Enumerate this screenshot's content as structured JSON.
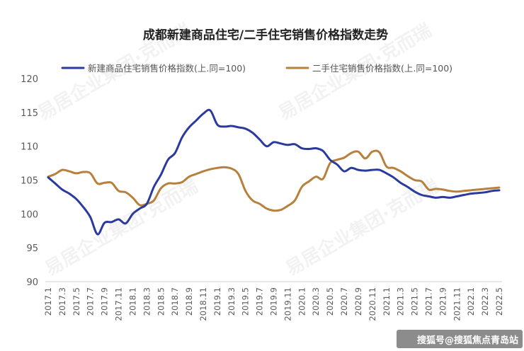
{
  "colors": {
    "new_home": "#2b3a9e",
    "second_hand": "#b7803c",
    "axis_text": "#595959"
  },
  "watermark": "易居企业集团·克而瑞",
  "credit": "搜狐号@搜狐焦点青岛站",
  "chart_data": {
    "type": "line",
    "title": "成都新建商品住宅/二手住宅销售价格指数走势",
    "xlabel": "",
    "ylabel": "",
    "ylim": [
      90,
      120
    ],
    "yticks": [
      90,
      95,
      100,
      105,
      110,
      115,
      120
    ],
    "grid": false,
    "legend_position": "top",
    "x": [
      "2017.1",
      "2017.2",
      "2017.3",
      "2017.4",
      "2017.5",
      "2017.6",
      "2017.7",
      "2017.8",
      "2017.9",
      "2017.10",
      "2017.11",
      "2017.12",
      "2018.1",
      "2018.2",
      "2018.3",
      "2018.4",
      "2018.5",
      "2018.6",
      "2018.7",
      "2018.8",
      "2018.9",
      "2018.10",
      "2018.11",
      "2018.12",
      "2019.1",
      "2019.2",
      "2019.3",
      "2019.4",
      "2019.5",
      "2019.6",
      "2019.7",
      "2019.8",
      "2019.9",
      "2019.10",
      "2019.11",
      "2019.12",
      "2020.1",
      "2020.2",
      "2020.3",
      "2020.4",
      "2020.5",
      "2020.6",
      "2020.7",
      "2020.8",
      "2020.9",
      "2020.10",
      "2020.11",
      "2020.12",
      "2021.1",
      "2021.2",
      "2021.3",
      "2021.4",
      "2021.5",
      "2021.6",
      "2021.7",
      "2021.8",
      "2021.9",
      "2021.10",
      "2021.11",
      "2021.12",
      "2022.1",
      "2022.2",
      "2022.3",
      "2022.4",
      "2022.5"
    ],
    "xtick_labels": [
      "2017.1",
      "2017.3",
      "2017.5",
      "2017.7",
      "2017.9",
      "2017.11",
      "2018.1",
      "2018.3",
      "2018.5",
      "2018.7",
      "2018.9",
      "2018.11",
      "2019.1",
      "2019.3",
      "2019.5",
      "2019.7",
      "2019.9",
      "2019.11",
      "2020.1",
      "2020.3",
      "2020.5",
      "2020.7",
      "2020.9",
      "2020.11",
      "2021.1",
      "2021.3",
      "2021.5",
      "2021.7",
      "2021.9",
      "2021.11",
      "2022.1",
      "2022.3",
      "2022.5"
    ],
    "series": [
      {
        "name": "新建商品住宅销售价格指数(上.同=100)",
        "values": [
          105.4,
          104.5,
          103.6,
          103.0,
          102.2,
          101.0,
          99.5,
          97.0,
          98.7,
          98.8,
          99.2,
          98.6,
          100.0,
          100.8,
          101.5,
          104.0,
          105.8,
          108.0,
          109.0,
          111.3,
          112.8,
          113.8,
          114.8,
          115.3,
          113.2,
          112.9,
          113.0,
          112.8,
          112.6,
          112.0,
          111.0,
          110.0,
          110.6,
          110.4,
          110.2,
          110.3,
          109.7,
          109.6,
          109.7,
          109.3,
          108.0,
          107.3,
          106.3,
          106.8,
          106.5,
          106.4,
          106.5,
          106.5,
          106.0,
          105.4,
          104.6,
          104.0,
          103.3,
          102.8,
          102.6,
          102.4,
          102.5,
          102.4,
          102.6,
          102.8,
          103.0,
          103.1,
          103.2,
          103.4,
          103.5
        ]
      },
      {
        "name": "二手住宅销售价格指数(上.同=100)",
        "values": [
          105.5,
          105.9,
          106.5,
          106.3,
          106.0,
          106.2,
          106.0,
          104.5,
          104.6,
          104.6,
          103.4,
          103.2,
          102.4,
          101.3,
          101.5,
          102.0,
          103.8,
          104.5,
          104.5,
          104.7,
          105.5,
          105.9,
          106.3,
          106.6,
          106.8,
          106.9,
          106.7,
          105.9,
          103.4,
          102.0,
          101.5,
          100.8,
          100.5,
          100.6,
          101.2,
          102.0,
          104.0,
          104.8,
          105.5,
          105.2,
          107.5,
          108.0,
          108.3,
          109.0,
          109.2,
          108.2,
          109.2,
          109.1,
          107.0,
          106.8,
          106.3,
          105.6,
          105.0,
          104.8,
          103.6,
          103.7,
          103.6,
          103.4,
          103.3,
          103.4,
          103.5,
          103.6,
          103.7,
          103.8,
          103.9
        ]
      }
    ]
  }
}
